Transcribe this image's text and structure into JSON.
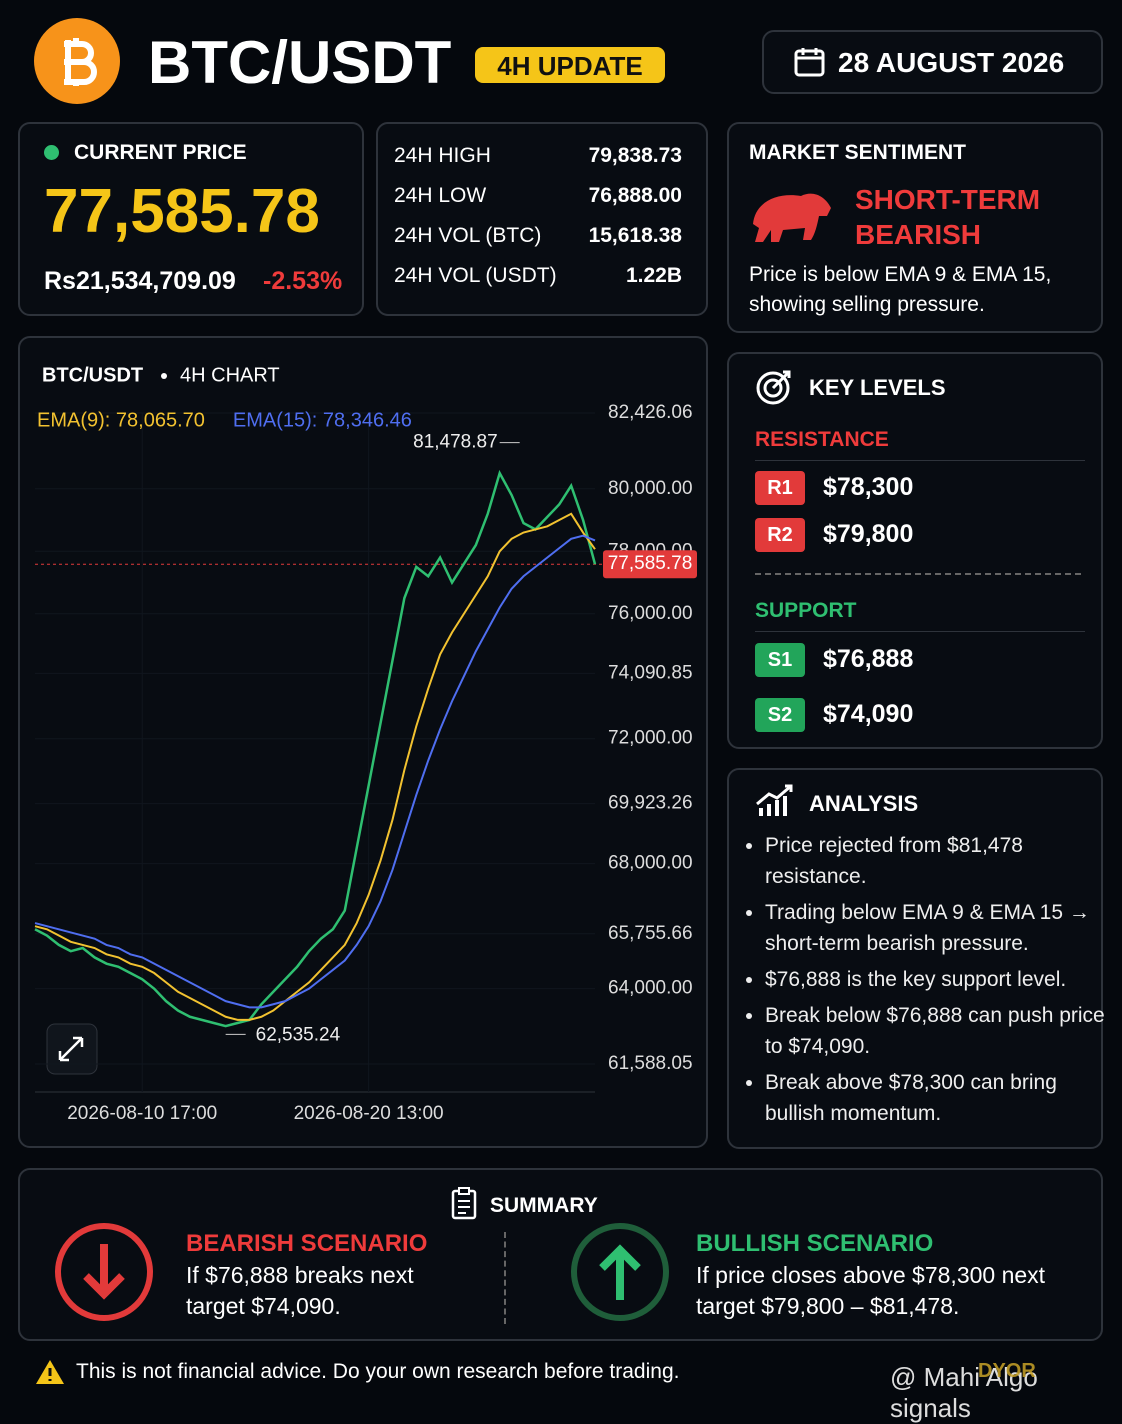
{
  "header": {
    "title": "BTC/USDT",
    "badge": "4H UPDATE",
    "date": "28 AUGUST 2026"
  },
  "price": {
    "label": "CURRENT PRICE",
    "value": "77,585.78",
    "inr": "Rs21,534,709.09",
    "change": "-2.53%"
  },
  "stats": {
    "rows": [
      [
        "24H HIGH",
        "79,838.73"
      ],
      [
        "24H LOW",
        "76,888.00"
      ],
      [
        "24H VOL (BTC)",
        "15,618.38"
      ],
      [
        "24H VOL (USDT)",
        "1.22B"
      ]
    ]
  },
  "sentiment": {
    "title": "MARKET SENTIMENT",
    "status": "SHORT-TERM BEARISH",
    "text": "Price is below EMA 9 & EMA 15, showing selling pressure."
  },
  "key_levels": {
    "title": "KEY LEVELS",
    "resistance_label": "RESISTANCE",
    "resistance": [
      {
        "tag": "R1",
        "value": "$78,300"
      },
      {
        "tag": "R2",
        "value": "$79,800"
      }
    ],
    "support_label": "SUPPORT",
    "support": [
      {
        "tag": "S1",
        "value": "$76,888"
      },
      {
        "tag": "S2",
        "value": "$74,090"
      }
    ]
  },
  "analysis": {
    "title": "ANALYSIS",
    "items": [
      "Price rejected from $81,478 resistance.",
      "Trading below EMA 9 & EMA 15 → short-term bearish pressure.",
      "$76,888 is the key support level.",
      "Break below $76,888 can push price to $74,090.",
      "Break above $78,300 can bring bullish momentum."
    ]
  },
  "summary": {
    "title": "SUMMARY",
    "bearish": {
      "title": "BEARISH SCENARIO",
      "text": "If $76,888 breaks next target $74,090."
    },
    "bullish": {
      "title": "BULLISH SCENARIO",
      "text": "If price closes above $78,300 next target $79,800 – $81,478."
    }
  },
  "disclaimer": "This is not financial advice. Do your own research before trading.",
  "watermark": {
    "handle": "@ Mahi Algo signals",
    "tag": "DYOR"
  },
  "chart_data": {
    "type": "line",
    "title": "BTC/USDT",
    "subtitle": "4H CHART",
    "categories": [
      null,
      null,
      null,
      null,
      null,
      null,
      null,
      null,
      null,
      "2026-08-10 17:00",
      null,
      null,
      null,
      null,
      null,
      null,
      null,
      null,
      null,
      null,
      null,
      null,
      null,
      null,
      null,
      null,
      null,
      null,
      "2026-08-20 13:00",
      null,
      null,
      null,
      null,
      null,
      null,
      null,
      null,
      null,
      null,
      null,
      null,
      null,
      null,
      null,
      null,
      null,
      null,
      null
    ],
    "series": [
      {
        "color": "#2fbf71",
        "values": [
          65900,
          65700,
          65400,
          65200,
          65300,
          65000,
          64800,
          64700,
          64500,
          64300,
          64000,
          63600,
          63300,
          63100,
          63000,
          62900,
          62800,
          62900,
          63000,
          63500,
          63900,
          64300,
          64700,
          65200,
          65600,
          65900,
          66500,
          68500,
          70500,
          72500,
          74500,
          76500,
          77500,
          77200,
          77800,
          77000,
          77600,
          78200,
          79200,
          80500,
          79800,
          78900,
          78700,
          79100,
          79500,
          80100,
          79000,
          77585.78
        ]
      },
      {
        "name": "EMA(9): 78,065.70",
        "color": "#f2c230",
        "values": [
          66000,
          65900,
          65700,
          65500,
          65400,
          65300,
          65100,
          65000,
          64800,
          64700,
          64500,
          64200,
          63900,
          63700,
          63500,
          63300,
          63100,
          63000,
          63000,
          63100,
          63300,
          63600,
          63900,
          64200,
          64600,
          65000,
          65400,
          66100,
          67000,
          68100,
          69400,
          71000,
          72400,
          73600,
          74700,
          75400,
          76000,
          76600,
          77200,
          78000,
          78400,
          78600,
          78700,
          78800,
          79000,
          79200,
          78600,
          78065.7
        ]
      },
      {
        "name": "EMA(15): 78,346.46",
        "color": "#4f6ef0",
        "values": [
          66100,
          66000,
          65900,
          65800,
          65700,
          65600,
          65400,
          65300,
          65100,
          65000,
          64800,
          64600,
          64400,
          64200,
          64000,
          63800,
          63600,
          63500,
          63400,
          63400,
          63500,
          63600,
          63800,
          64000,
          64300,
          64600,
          64900,
          65400,
          66000,
          66800,
          67800,
          69000,
          70200,
          71300,
          72300,
          73200,
          74000,
          74800,
          75500,
          76200,
          76800,
          77200,
          77500,
          77800,
          78100,
          78400,
          78500,
          78346.46
        ]
      }
    ],
    "ylim": [
      61588.05,
      82426.06
    ],
    "yticks": [
      {
        "value": 82426.06,
        "label": "82,426.06"
      },
      {
        "value": 80000,
        "label": "80,000.00"
      },
      {
        "value": 78000,
        "label": "78,000.00"
      },
      {
        "value": 76000,
        "label": "76,000.00"
      },
      {
        "value": 74090.85,
        "label": "74,090.85"
      },
      {
        "value": 72000,
        "label": "72,000.00"
      },
      {
        "value": 69923.26,
        "label": "69,923.26"
      },
      {
        "value": 68000,
        "label": "68,000.00"
      },
      {
        "value": 65755.66,
        "label": "65,755.66"
      },
      {
        "value": 64000,
        "label": "64,000.00"
      },
      {
        "value": 61588.05,
        "label": "61,588.05"
      }
    ],
    "last_price": {
      "value": 77585.78,
      "label": "77,585.78"
    },
    "annotations": [
      {
        "value": 81478.87,
        "label": "81,478.87"
      },
      {
        "value": 62535.24,
        "label": "62,535.24"
      }
    ]
  }
}
